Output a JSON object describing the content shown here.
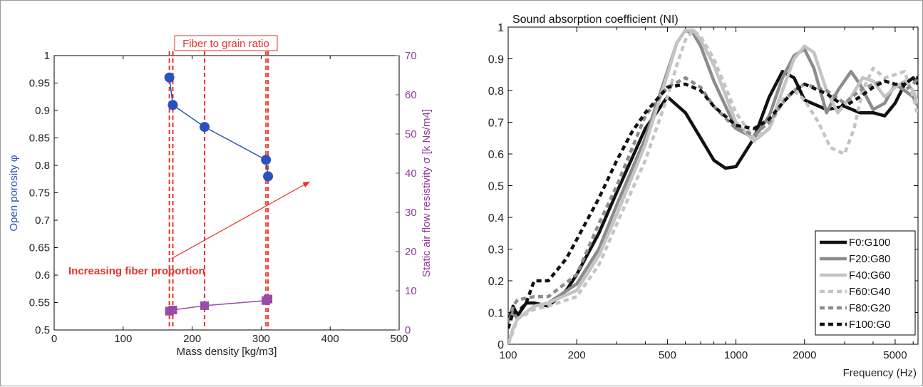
{
  "chart_data": [
    {
      "type": "scatter",
      "xlabel": "Mass density [kg/m3]",
      "ylabel_left": "Open porosity φ",
      "ylabel_right": "Static air flow resistivity σ [k Ns/m4]",
      "xlim": [
        0,
        500
      ],
      "ylim_left": [
        0.5,
        1
      ],
      "ylim_right": [
        0,
        70
      ],
      "x_ticks": [
        "0",
        "100",
        "200",
        "300",
        "400",
        "500"
      ],
      "y_ticks_left": [
        "0.5",
        "0.55",
        "0.6",
        "0.65",
        "0.7",
        "0.75",
        "0.8",
        "0.85",
        "0.9",
        "0.95",
        "1"
      ],
      "y_ticks_right": [
        "0",
        "10",
        "20",
        "30",
        "40",
        "50",
        "60",
        "70"
      ],
      "series": [
        {
          "name": "Open porosity",
          "axis": "left",
          "color": "#2a52be",
          "marker": "circle",
          "x": [
            167,
            172,
            218,
            307,
            310
          ],
          "y": [
            0.96,
            0.91,
            0.87,
            0.81,
            0.78
          ]
        },
        {
          "name": "Static air flow resistivity",
          "axis": "right",
          "color": "#9a4aa8",
          "marker": "square",
          "x": [
            167,
            172,
            218,
            307,
            310
          ],
          "y": [
            4.8,
            5.1,
            6.2,
            7.5,
            7.9
          ]
        }
      ],
      "vlines": [
        167,
        172,
        218,
        307,
        310
      ],
      "vline_color": "#e8322a",
      "annotations": {
        "box_label": "Fiber to grain ratio",
        "arrow_label": "Increasing fiber proportion",
        "arrow_from": [
          170,
          0.63
        ],
        "arrow_to": [
          370,
          0.77
        ]
      }
    },
    {
      "type": "line",
      "title": "Sound absorption coefficient (NI)",
      "xlabel": "Frequency (Hz)",
      "xscale": "log",
      "xlim": [
        100,
        6300
      ],
      "ylim": [
        0,
        1
      ],
      "x_ticks": [
        "100",
        "200",
        "500",
        "1000",
        "2000",
        "5000"
      ],
      "x_tick_values": [
        100,
        200,
        500,
        1000,
        2000,
        5000
      ],
      "y_ticks": [
        "0",
        "0.1",
        "0.2",
        "0.3",
        "0.4",
        "0.5",
        "0.6",
        "0.7",
        "0.8",
        "0.9",
        "1"
      ],
      "legend_position": "bottom-right",
      "series": [
        {
          "name": "F0:G100",
          "color": "#111111",
          "dash": "solid",
          "x": [
            100,
            105,
            110,
            120,
            130,
            150,
            180,
            200,
            250,
            300,
            400,
            500,
            600,
            700,
            800,
            900,
            1000,
            1200,
            1400,
            1600,
            1800,
            2000,
            2500,
            3000,
            3500,
            4000,
            4500,
            5000,
            5500,
            6000,
            6300
          ],
          "y": [
            0.07,
            0.12,
            0.09,
            0.13,
            0.13,
            0.12,
            0.17,
            0.22,
            0.35,
            0.48,
            0.68,
            0.78,
            0.73,
            0.65,
            0.58,
            0.555,
            0.56,
            0.65,
            0.78,
            0.86,
            0.84,
            0.77,
            0.74,
            0.75,
            0.73,
            0.73,
            0.72,
            0.76,
            0.82,
            0.84,
            0.82
          ]
        },
        {
          "name": "F20:G80",
          "color": "#8c8c8c",
          "dash": "solid",
          "x": [
            100,
            105,
            110,
            130,
            150,
            200,
            250,
            300,
            400,
            500,
            550,
            600,
            650,
            700,
            800,
            1000,
            1200,
            1400,
            1600,
            1800,
            2000,
            2200,
            2500,
            2800,
            3200,
            3500,
            4000,
            4500,
            5000,
            5500,
            6000,
            6300
          ],
          "y": [
            0.07,
            0.1,
            0.08,
            0.12,
            0.13,
            0.19,
            0.3,
            0.44,
            0.65,
            0.86,
            0.95,
            0.99,
            0.98,
            0.94,
            0.83,
            0.68,
            0.65,
            0.72,
            0.84,
            0.91,
            0.93,
            0.87,
            0.73,
            0.8,
            0.86,
            0.82,
            0.74,
            0.76,
            0.82,
            0.8,
            0.78,
            0.75
          ]
        },
        {
          "name": "F40:G60",
          "color": "#c4c4c4",
          "dash": "solid",
          "x": [
            100,
            105,
            110,
            130,
            150,
            200,
            250,
            300,
            400,
            500,
            550,
            600,
            650,
            700,
            800,
            1000,
            1200,
            1400,
            1600,
            1800,
            2000,
            2200,
            2500,
            2800,
            3200,
            3600,
            4000,
            4500,
            5000,
            5500,
            6000,
            6300
          ],
          "y": [
            0.0,
            0.05,
            0.08,
            0.12,
            0.13,
            0.17,
            0.28,
            0.41,
            0.63,
            0.85,
            0.95,
            0.99,
            0.99,
            0.96,
            0.88,
            0.7,
            0.64,
            0.68,
            0.8,
            0.9,
            0.94,
            0.92,
            0.8,
            0.73,
            0.78,
            0.84,
            0.83,
            0.78,
            0.81,
            0.83,
            0.8,
            0.76
          ]
        },
        {
          "name": "F60:G40",
          "color": "#c4c4c4",
          "dash": "dashed",
          "x": [
            100,
            105,
            110,
            130,
            150,
            200,
            250,
            300,
            400,
            500,
            550,
            600,
            650,
            700,
            800,
            1000,
            1200,
            1400,
            1600,
            1800,
            2000,
            2300,
            2600,
            3000,
            3300,
            3600,
            4000,
            4500,
            5000,
            5500,
            6000,
            6300
          ],
          "y": [
            0.0,
            0.04,
            0.08,
            0.11,
            0.12,
            0.15,
            0.25,
            0.38,
            0.58,
            0.78,
            0.88,
            0.96,
            0.99,
            0.97,
            0.9,
            0.73,
            0.65,
            0.68,
            0.77,
            0.8,
            0.77,
            0.7,
            0.62,
            0.6,
            0.68,
            0.8,
            0.87,
            0.84,
            0.85,
            0.86,
            0.78,
            0.72
          ]
        },
        {
          "name": "F80:G20",
          "color": "#8c8c8c",
          "dash": "dashed",
          "x": [
            100,
            105,
            110,
            130,
            150,
            200,
            250,
            300,
            400,
            500,
            600,
            700,
            800,
            1000,
            1200,
            1400,
            1600,
            1800,
            2000,
            2500,
            3000,
            3500,
            4000,
            4500,
            5000,
            5500,
            6000,
            6300
          ],
          "y": [
            0.05,
            0.12,
            0.14,
            0.15,
            0.15,
            0.22,
            0.38,
            0.5,
            0.72,
            0.81,
            0.84,
            0.81,
            0.75,
            0.68,
            0.66,
            0.7,
            0.76,
            0.8,
            0.82,
            0.8,
            0.76,
            0.8,
            0.82,
            0.83,
            0.82,
            0.8,
            0.82,
            0.84
          ]
        },
        {
          "name": "F100:G0",
          "color": "#111111",
          "dash": "dashed",
          "x": [
            100,
            105,
            110,
            120,
            130,
            150,
            180,
            200,
            250,
            300,
            350,
            400,
            500,
            600,
            700,
            800,
            1000,
            1200,
            1400,
            1600,
            1800,
            2000,
            2500,
            3000,
            3500,
            4000,
            4500,
            5000,
            5500,
            6000,
            6300
          ],
          "y": [
            0.05,
            0.1,
            0.1,
            0.13,
            0.2,
            0.2,
            0.27,
            0.33,
            0.46,
            0.58,
            0.67,
            0.73,
            0.81,
            0.82,
            0.8,
            0.75,
            0.69,
            0.68,
            0.71,
            0.76,
            0.8,
            0.82,
            0.79,
            0.75,
            0.78,
            0.81,
            0.83,
            0.82,
            0.82,
            0.84,
            0.84
          ]
        }
      ]
    }
  ]
}
